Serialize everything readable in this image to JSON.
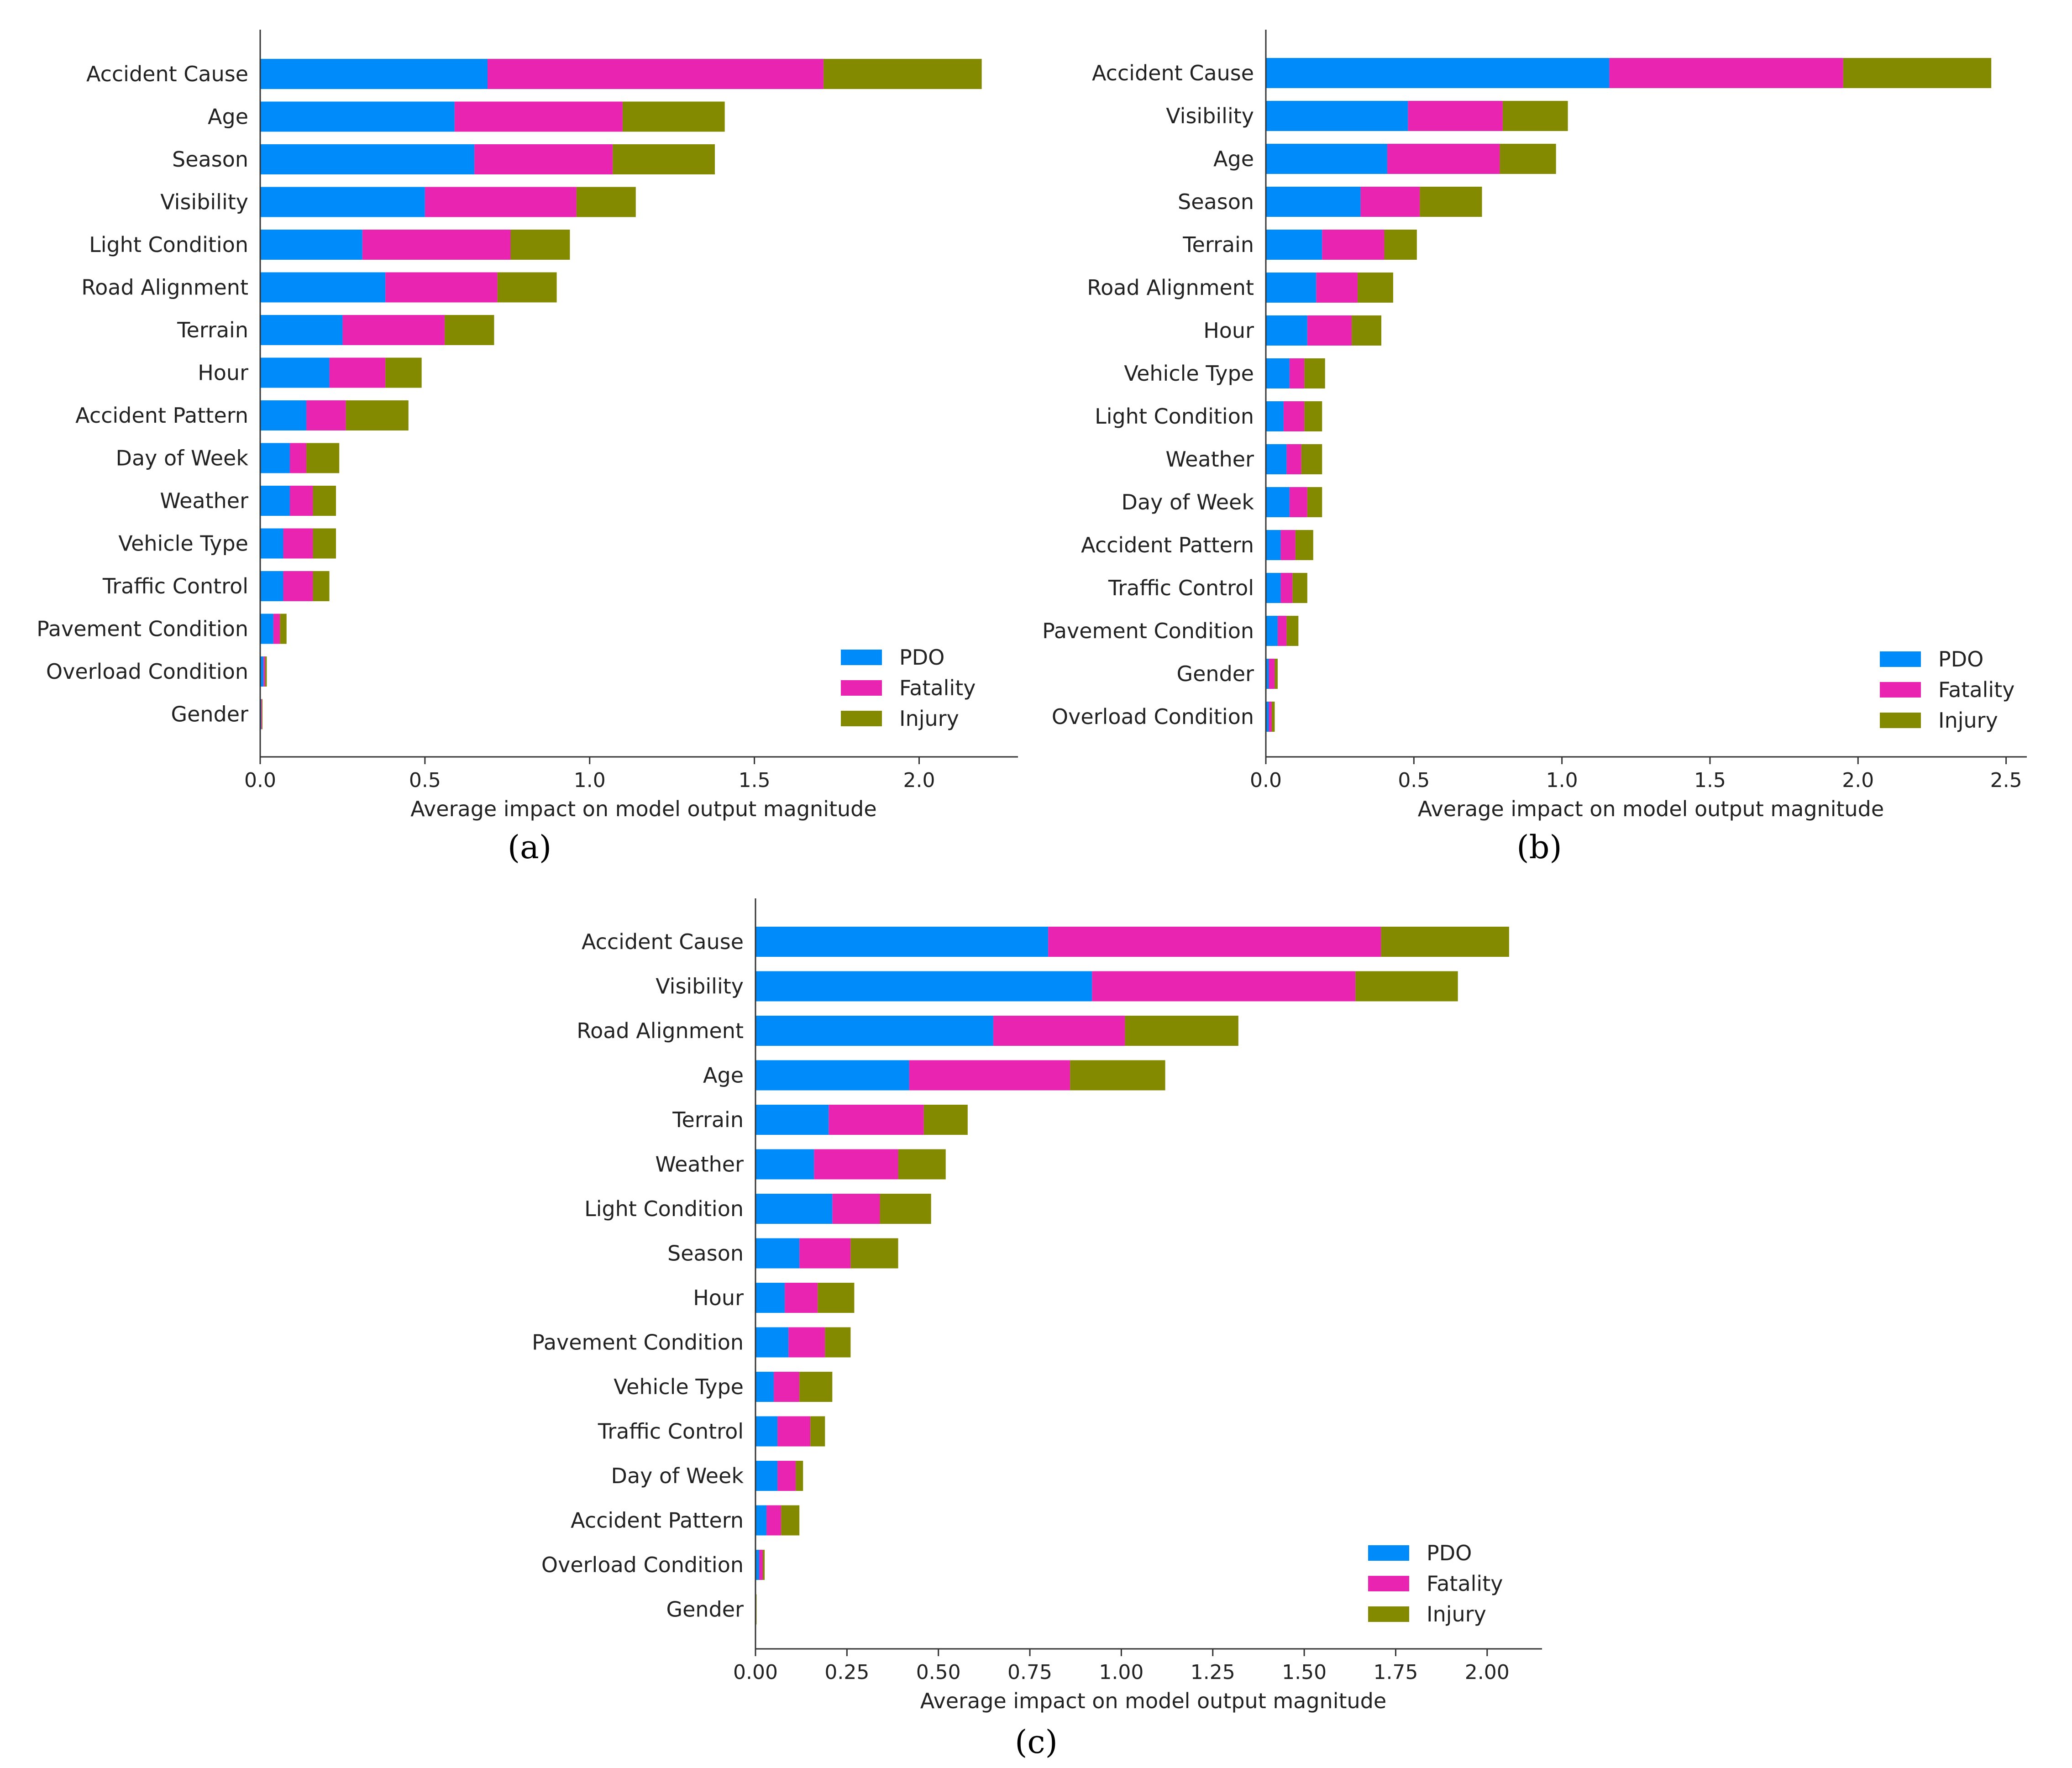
{
  "colors": {
    "PDO": "#008bfb",
    "Fatality": "#e824b0",
    "Injury": "#838a00",
    "axis": "#333333"
  },
  "chart_data": [
    {
      "type": "bar",
      "orientation": "horizontal",
      "stacked": true,
      "panel_label": "(a)",
      "xlabel": "Average impact on model output magnitude",
      "xlim": [
        0,
        2.3
      ],
      "xticks": [
        "0.0",
        "0.5",
        "1.0",
        "1.5",
        "2.0"
      ],
      "xtick_values": [
        0,
        0.5,
        1.0,
        1.5,
        2.0
      ],
      "legend_position": "lower-right",
      "categories": [
        "Accident Cause",
        "Age",
        "Season",
        "Visibility",
        "Light Condition",
        "Road Alignment",
        "Terrain",
        "Hour",
        "Accident Pattern",
        "Day of Week",
        "Weather",
        "Vehicle Type",
        "Traffic Control",
        "Pavement Condition",
        "Overload Condition",
        "Gender"
      ],
      "series": [
        {
          "name": "PDO",
          "values": [
            0.69,
            0.59,
            0.65,
            0.5,
            0.31,
            0.38,
            0.25,
            0.21,
            0.14,
            0.09,
            0.09,
            0.07,
            0.07,
            0.04,
            0.01,
            0.003
          ]
        },
        {
          "name": "Fatality",
          "values": [
            1.02,
            0.51,
            0.42,
            0.46,
            0.45,
            0.34,
            0.31,
            0.17,
            0.12,
            0.05,
            0.07,
            0.09,
            0.09,
            0.02,
            0.005,
            0.002
          ]
        },
        {
          "name": "Injury",
          "values": [
            0.48,
            0.31,
            0.31,
            0.18,
            0.18,
            0.18,
            0.15,
            0.11,
            0.19,
            0.1,
            0.07,
            0.07,
            0.05,
            0.02,
            0.005,
            0.002
          ]
        }
      ]
    },
    {
      "type": "bar",
      "orientation": "horizontal",
      "stacked": true,
      "panel_label": "(b)",
      "xlabel": "Average impact on model output magnitude",
      "xlim": [
        0,
        2.57
      ],
      "xticks": [
        "0.0",
        "0.5",
        "1.0",
        "1.5",
        "2.0",
        "2.5"
      ],
      "xtick_values": [
        0,
        0.5,
        1.0,
        1.5,
        2.0,
        2.5
      ],
      "legend_position": "lower-right",
      "categories": [
        "Accident Cause",
        "Visibility",
        "Age",
        "Season",
        "Terrain",
        "Road Alignment",
        "Hour",
        "Vehicle Type",
        "Light Condition",
        "Weather",
        "Day of Week",
        "Accident Pattern",
        "Traffic Control",
        "Pavement Condition",
        "Gender",
        "Overload Condition"
      ],
      "series": [
        {
          "name": "PDO",
          "values": [
            1.16,
            0.48,
            0.41,
            0.32,
            0.19,
            0.17,
            0.14,
            0.08,
            0.06,
            0.07,
            0.08,
            0.05,
            0.05,
            0.04,
            0.01,
            0.01
          ]
        },
        {
          "name": "Fatality",
          "values": [
            0.79,
            0.32,
            0.38,
            0.2,
            0.21,
            0.14,
            0.15,
            0.05,
            0.07,
            0.05,
            0.06,
            0.05,
            0.04,
            0.03,
            0.02,
            0.01
          ]
        },
        {
          "name": "Injury",
          "values": [
            0.5,
            0.22,
            0.19,
            0.21,
            0.11,
            0.12,
            0.1,
            0.07,
            0.06,
            0.07,
            0.05,
            0.06,
            0.05,
            0.04,
            0.01,
            0.01
          ]
        }
      ]
    },
    {
      "type": "bar",
      "orientation": "horizontal",
      "stacked": true,
      "panel_label": "(c)",
      "xlabel": "Average impact on model output magnitude",
      "xlim": [
        0,
        2.15
      ],
      "xticks": [
        "0.00",
        "0.25",
        "0.50",
        "0.75",
        "1.00",
        "1.25",
        "1.50",
        "1.75",
        "2.00"
      ],
      "xtick_values": [
        0,
        0.25,
        0.5,
        0.75,
        1.0,
        1.25,
        1.5,
        1.75,
        2.0
      ],
      "legend_position": "lower-right",
      "categories": [
        "Accident Cause",
        "Visibility",
        "Road Alignment",
        "Age",
        "Terrain",
        "Weather",
        "Light Condition",
        "Season",
        "Hour",
        "Pavement Condition",
        "Vehicle Type",
        "Traffic Control",
        "Day of Week",
        "Accident Pattern",
        "Overload Condition",
        "Gender"
      ],
      "series": [
        {
          "name": "PDO",
          "values": [
            0.8,
            0.92,
            0.65,
            0.42,
            0.2,
            0.16,
            0.21,
            0.12,
            0.08,
            0.09,
            0.05,
            0.06,
            0.06,
            0.03,
            0.01,
            0.001
          ]
        },
        {
          "name": "Fatality",
          "values": [
            0.91,
            0.72,
            0.36,
            0.44,
            0.26,
            0.23,
            0.13,
            0.14,
            0.09,
            0.1,
            0.07,
            0.09,
            0.05,
            0.04,
            0.01,
            0.001
          ]
        },
        {
          "name": "Injury",
          "values": [
            0.35,
            0.28,
            0.31,
            0.26,
            0.12,
            0.13,
            0.14,
            0.13,
            0.1,
            0.07,
            0.09,
            0.04,
            0.02,
            0.05,
            0.005,
            0.001
          ]
        }
      ]
    }
  ]
}
